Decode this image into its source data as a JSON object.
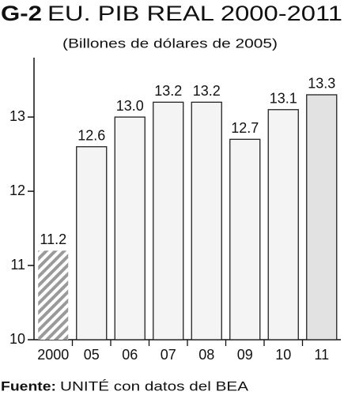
{
  "chart_data": {
    "type": "bar",
    "title_label": "G-2",
    "title": "EU. PIB REAL 2000-2011",
    "subtitle": "(Billones de dólares de 2005)",
    "categories": [
      "2000",
      "05",
      "06",
      "07",
      "08",
      "09",
      "10",
      "11"
    ],
    "values": [
      11.2,
      12.6,
      13.0,
      13.2,
      13.2,
      12.7,
      13.1,
      13.3
    ],
    "value_labels": [
      "11.2",
      "12.6",
      "13.0",
      "13.2",
      "13.2",
      "12.7",
      "13.1",
      "13.3"
    ],
    "colors": [
      "#9a9a9a",
      "#f4f4f4",
      "#f4f4f4",
      "#f4f4f4",
      "#f4f4f4",
      "#f4f4f4",
      "#f4f4f4",
      "#e2e2e2"
    ],
    "hatch": [
      true,
      false,
      false,
      false,
      false,
      false,
      false,
      false
    ],
    "ylim": [
      10,
      13.8
    ],
    "yticks": [
      10,
      11,
      12,
      13
    ],
    "source_label": "Fuente:",
    "source": "UNITÉ con datos del BEA"
  }
}
